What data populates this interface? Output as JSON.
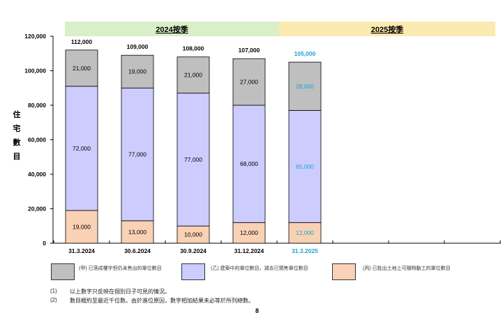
{
  "chart_data": {
    "type": "bar",
    "stacked": true,
    "ylabel": "住宅數目",
    "ylim": [
      0,
      120000
    ],
    "yticks": [
      "0",
      "20,000",
      "40,000",
      "60,000",
      "80,000",
      "100,000",
      "120,000"
    ],
    "groups": [
      {
        "label": "2024按季",
        "color": "#d9efc8"
      },
      {
        "label": "2025按季",
        "color": "#fbeab0"
      }
    ],
    "categories": [
      "31.3.2024",
      "30.6.2024",
      "30.9.2024",
      "31.12.2024",
      "31.3.2025"
    ],
    "category_colors": [
      "#000000",
      "#000000",
      "#000000",
      "#000000",
      "#1ba3d6"
    ],
    "series": [
      {
        "name": "(丙) 已批出土地上可隨時動工的單位數目",
        "color": "#f9d1b4",
        "values": [
          19000,
          13000,
          10000,
          12000,
          12000
        ],
        "labels": [
          "19,000",
          "13,000",
          "10,000",
          "12,000",
          "12,000"
        ]
      },
      {
        "name": "(乙) 建築中的單位數目，減去已預售單位數目",
        "color": "#ccccff",
        "values": [
          72000,
          77000,
          77000,
          68000,
          65000
        ],
        "labels": [
          "72,000",
          "77,000",
          "77,000",
          "68,000",
          "65,000"
        ]
      },
      {
        "name": "(甲) 已落成樓宇但仍未售出的單位數目",
        "color": "#bfbfbf",
        "values": [
          21000,
          19000,
          21000,
          27000,
          28000
        ],
        "labels": [
          "21,000",
          "19,000",
          "21,000",
          "27,000",
          "28,000"
        ]
      }
    ],
    "totals": [
      112000,
      109000,
      108000,
      107000,
      105000
    ],
    "total_labels": [
      "112,000",
      "109,000",
      "108,000",
      "107,000",
      "105,000"
    ],
    "highlight_color": "#1ba3d6",
    "grid": false,
    "legend_position": "bottom"
  },
  "notes": [
    {
      "num": "(1)",
      "text": "以上數字只反映在個別日子可見的情況。"
    },
    {
      "num": "(2)",
      "text": "數目概約至最近千位數。由於進位原因，數字相加結果未必等於所列總數。"
    }
  ],
  "page_number": "8"
}
